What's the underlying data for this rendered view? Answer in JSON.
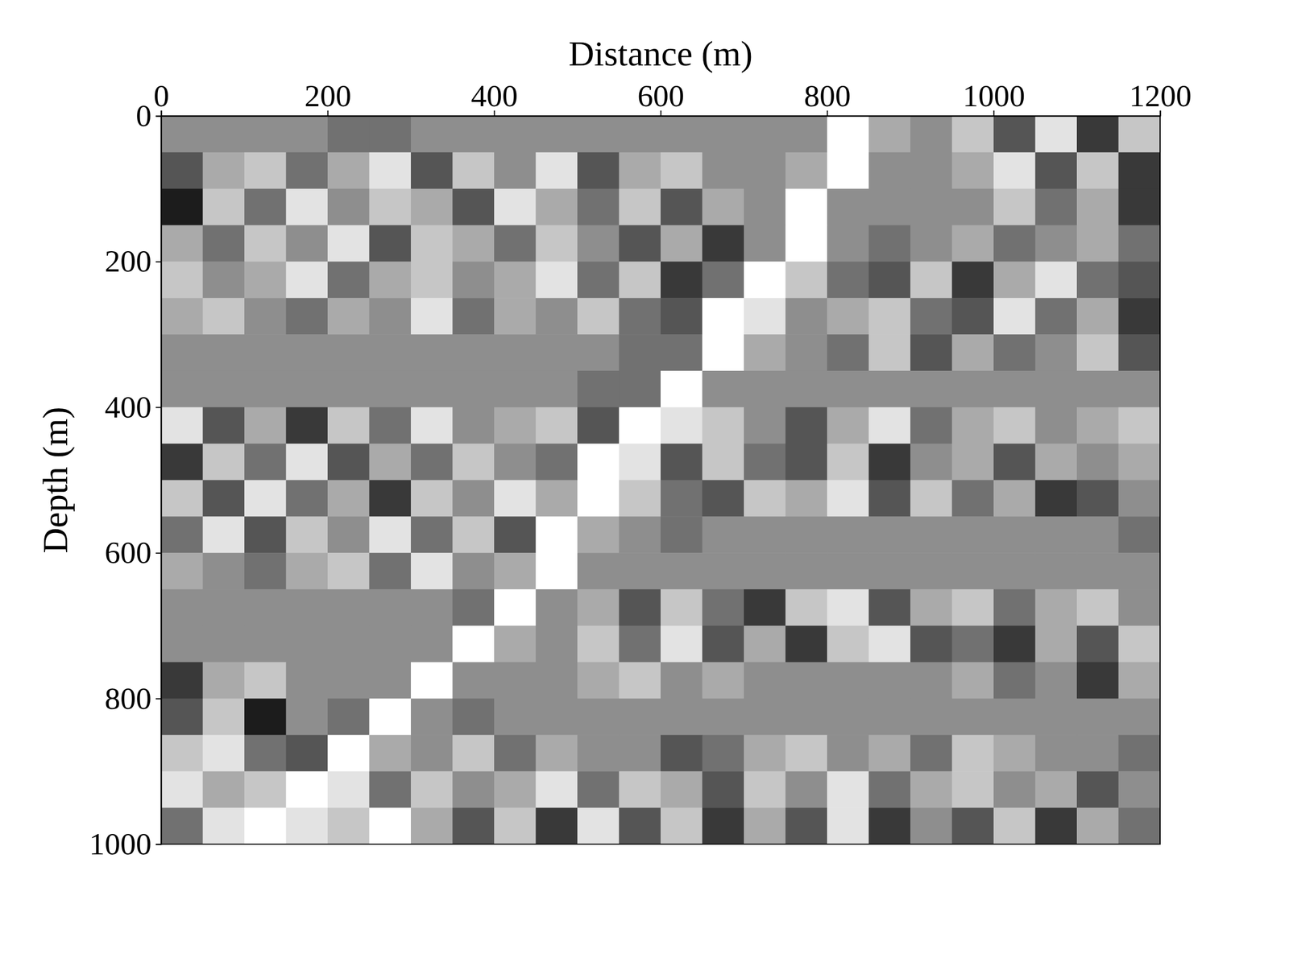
{
  "chart_data": {
    "type": "heatmap",
    "x_label": "Distance (m)",
    "y_label": "Depth (m)",
    "xlim": [
      0,
      1200
    ],
    "ylim": [
      0,
      1000
    ],
    "xticks": [
      0,
      200,
      400,
      600,
      800,
      1000,
      1200
    ],
    "yticks": [
      0,
      200,
      400,
      600,
      800,
      1000
    ],
    "zlim": [
      0,
      9
    ],
    "x": [
      25,
      75,
      125,
      175,
      225,
      275,
      325,
      375,
      425,
      475,
      525,
      575,
      625,
      675,
      725,
      775,
      825,
      875,
      925,
      975,
      1025,
      1075,
      1125,
      1175
    ],
    "y": [
      25,
      75,
      125,
      175,
      225,
      275,
      325,
      375,
      425,
      475,
      525,
      575,
      625,
      675,
      725,
      775,
      825,
      875,
      925,
      975
    ],
    "z": [
      [
        5,
        5,
        5,
        5,
        4,
        4,
        5,
        5,
        5,
        5,
        5,
        5,
        5,
        5,
        5,
        5,
        9,
        6,
        5,
        7,
        3,
        8,
        2,
        7
      ],
      [
        3,
        6,
        7,
        4,
        6,
        8,
        3,
        7,
        5,
        8,
        3,
        6,
        7,
        5,
        5,
        6,
        9,
        5,
        5,
        6,
        8,
        3,
        7,
        2
      ],
      [
        1,
        7,
        4,
        8,
        5,
        7,
        6,
        3,
        8,
        6,
        4,
        7,
        3,
        6,
        5,
        9,
        5,
        5,
        5,
        5,
        7,
        4,
        6,
        2
      ],
      [
        6,
        4,
        7,
        5,
        8,
        3,
        7,
        6,
        4,
        7,
        5,
        3,
        6,
        2,
        5,
        9,
        5,
        4,
        5,
        6,
        4,
        5,
        6,
        4
      ],
      [
        7,
        5,
        6,
        8,
        4,
        6,
        7,
        5,
        6,
        8,
        4,
        7,
        2,
        4,
        9,
        7,
        4,
        3,
        7,
        2,
        6,
        8,
        4,
        3
      ],
      [
        6,
        7,
        5,
        4,
        6,
        5,
        8,
        4,
        6,
        5,
        7,
        4,
        3,
        9,
        8,
        5,
        6,
        7,
        4,
        3,
        8,
        4,
        6,
        2
      ],
      [
        5,
        5,
        5,
        5,
        5,
        5,
        5,
        5,
        5,
        5,
        5,
        4,
        4,
        9,
        6,
        5,
        4,
        7,
        3,
        6,
        4,
        5,
        7,
        3
      ],
      [
        5,
        5,
        5,
        5,
        5,
        5,
        5,
        5,
        5,
        5,
        4,
        4,
        9,
        5,
        5,
        5,
        5,
        5,
        5,
        5,
        5,
        5,
        5,
        5
      ],
      [
        8,
        3,
        6,
        2,
        7,
        4,
        8,
        5,
        6,
        7,
        3,
        9,
        8,
        7,
        5,
        3,
        6,
        8,
        4,
        6,
        7,
        5,
        6,
        7
      ],
      [
        2,
        7,
        4,
        8,
        3,
        6,
        4,
        7,
        5,
        4,
        9,
        8,
        3,
        7,
        4,
        3,
        7,
        2,
        5,
        6,
        3,
        6,
        5,
        6
      ],
      [
        7,
        3,
        8,
        4,
        6,
        2,
        7,
        5,
        8,
        6,
        9,
        7,
        4,
        3,
        7,
        6,
        8,
        3,
        7,
        4,
        6,
        2,
        3,
        5
      ],
      [
        4,
        8,
        3,
        7,
        5,
        8,
        4,
        7,
        3,
        9,
        6,
        5,
        4,
        5,
        5,
        5,
        5,
        5,
        5,
        5,
        5,
        5,
        5,
        4
      ],
      [
        6,
        5,
        4,
        6,
        7,
        4,
        8,
        5,
        6,
        9,
        5,
        5,
        5,
        5,
        5,
        5,
        5,
        5,
        5,
        5,
        5,
        5,
        5,
        5
      ],
      [
        5,
        5,
        5,
        5,
        5,
        5,
        5,
        4,
        9,
        5,
        6,
        3,
        7,
        4,
        2,
        7,
        8,
        3,
        6,
        7,
        4,
        6,
        7,
        5
      ],
      [
        5,
        5,
        5,
        5,
        5,
        5,
        5,
        9,
        6,
        5,
        7,
        4,
        8,
        3,
        6,
        2,
        7,
        8,
        3,
        4,
        2,
        6,
        3,
        7
      ],
      [
        2,
        6,
        7,
        5,
        5,
        5,
        9,
        5,
        5,
        5,
        6,
        7,
        5,
        6,
        5,
        5,
        5,
        5,
        5,
        6,
        4,
        5,
        2,
        6
      ],
      [
        3,
        7,
        1,
        5,
        4,
        9,
        5,
        4,
        5,
        5,
        5,
        5,
        5,
        5,
        5,
        5,
        5,
        5,
        5,
        5,
        5,
        5,
        5,
        5
      ],
      [
        7,
        8,
        4,
        3,
        9,
        6,
        5,
        7,
        4,
        6,
        5,
        5,
        3,
        4,
        6,
        7,
        5,
        6,
        4,
        7,
        6,
        5,
        5,
        4
      ],
      [
        8,
        6,
        7,
        9,
        8,
        4,
        7,
        5,
        6,
        8,
        4,
        7,
        6,
        3,
        7,
        5,
        8,
        4,
        6,
        7,
        5,
        6,
        3,
        5
      ],
      [
        4,
        8,
        9,
        8,
        7,
        9,
        6,
        3,
        7,
        2,
        8,
        3,
        7,
        2,
        6,
        3,
        8,
        2,
        5,
        3,
        7,
        2,
        6,
        4
      ]
    ]
  }
}
